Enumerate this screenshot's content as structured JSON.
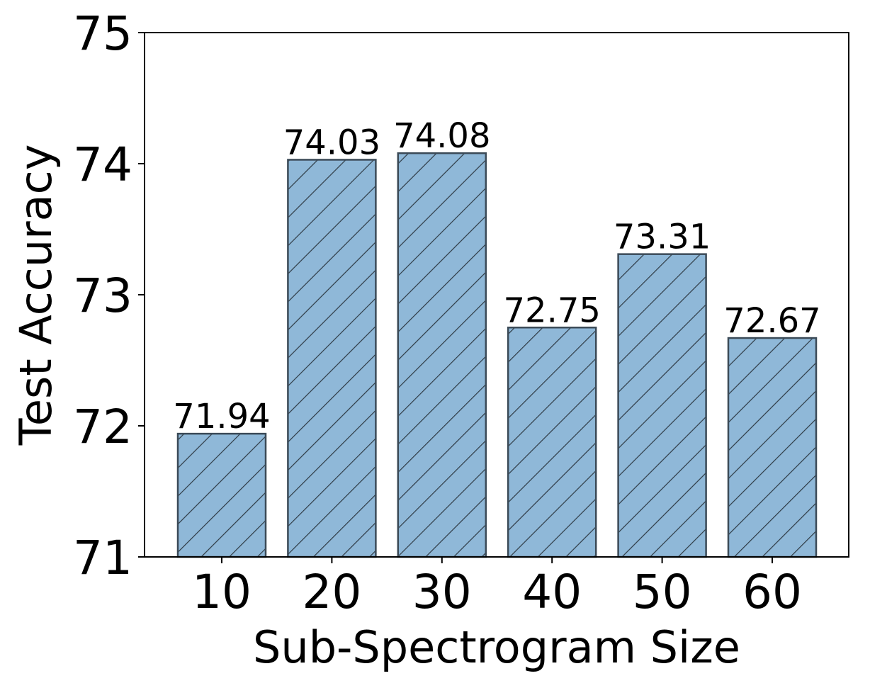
{
  "chart_data": {
    "type": "bar",
    "title": "",
    "xlabel": "Sub-Spectrogram Size",
    "ylabel": "Test Accuracy",
    "categories": [
      "10",
      "20",
      "30",
      "40",
      "50",
      "60"
    ],
    "values": [
      71.94,
      74.03,
      74.08,
      72.75,
      73.31,
      72.67
    ],
    "value_labels": [
      "71.94",
      "74.03",
      "74.08",
      "72.75",
      "73.31",
      "72.67"
    ],
    "ylim": [
      71,
      75
    ],
    "yticks": [
      "71",
      "72",
      "73",
      "74",
      "75"
    ],
    "grid": false,
    "bar_color": "#8fb8d8",
    "bar_edge_color": "#3b4a57",
    "hatch": "diagonal"
  }
}
